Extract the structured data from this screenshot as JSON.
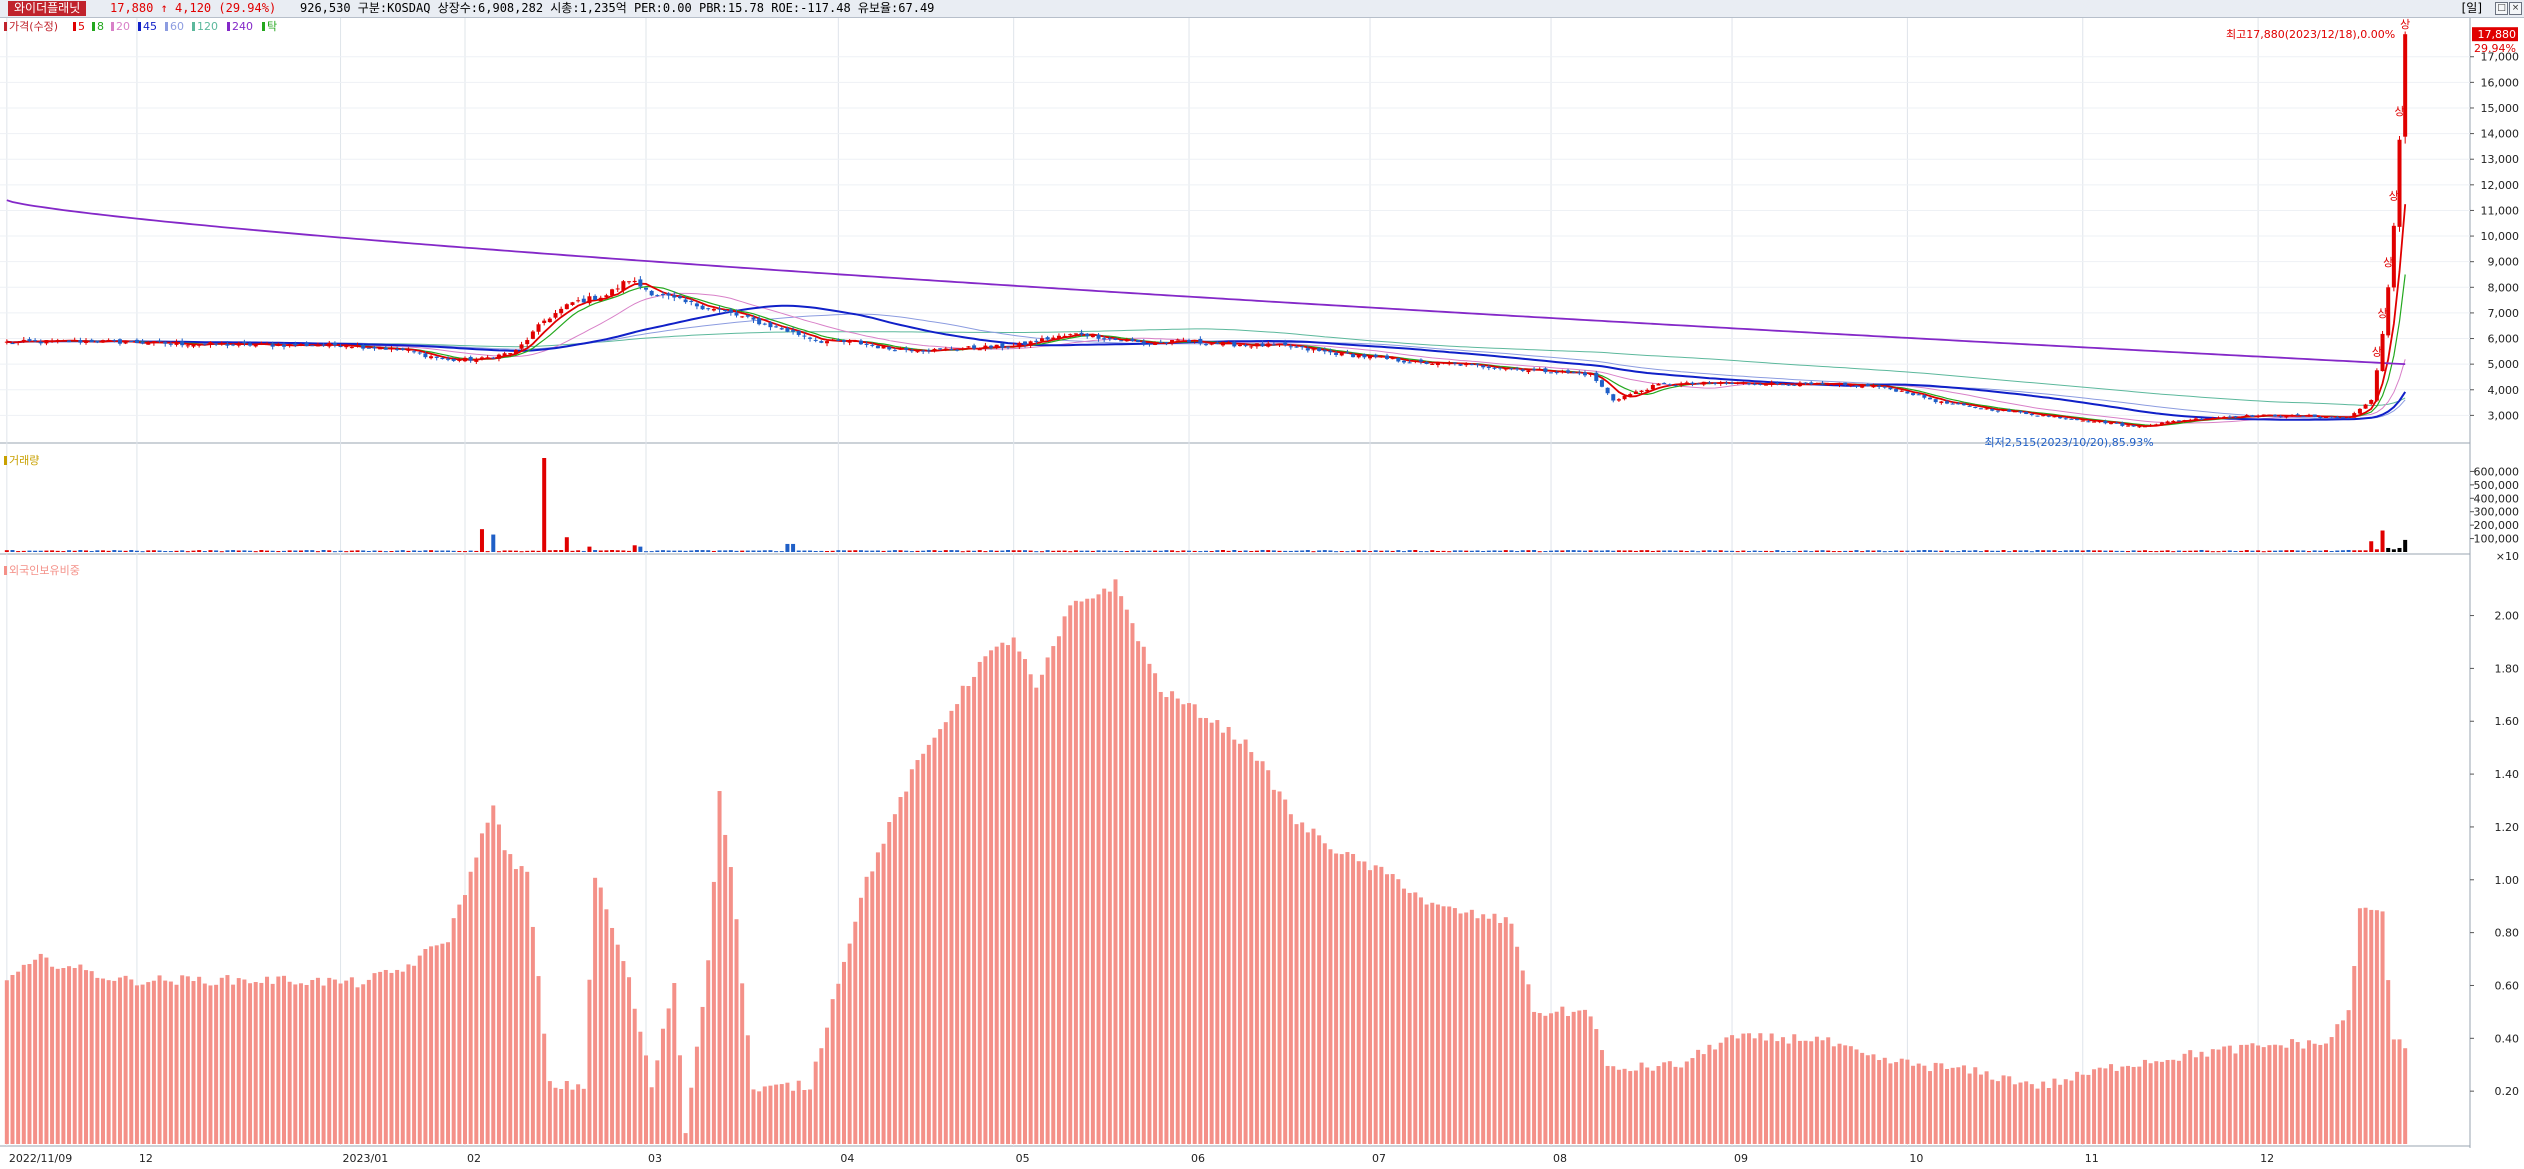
{
  "header": {
    "stock_name": "와이더플래닛",
    "price_text": "17,880  ↑ 4,120 (29.94%)",
    "info_text": "926,530  구분:KOSDAQ 상장수:6,908,282 시총:1,235억 PER:0.00 PBR:15.78 ROE:-117.48 유보율:67.49",
    "period_label": "[일]",
    "window_buttons": [
      "□",
      "×"
    ]
  },
  "colors": {
    "up": "#e00000",
    "down": "#1f5fc7",
    "ma5": "#e00000",
    "ma8": "#24a81e",
    "ma20": "#d880c8",
    "ma45": "#1020c8",
    "ma60": "#8c9ce0",
    "ma120": "#5cb89c",
    "ma240": "#8428c8",
    "foreign_bar": "#f49088"
  },
  "chart_data": [
    {
      "panel": "price",
      "type": "candlestick",
      "legend": [
        "가격(수정)",
        "5",
        "8",
        "20",
        "45",
        "60",
        "120",
        "240",
        "탁"
      ],
      "y_ticks": [
        "3,000",
        "4,000",
        "5,000",
        "6,000",
        "7,000",
        "8,000",
        "9,000",
        "10,000",
        "11,000",
        "12,000",
        "13,000",
        "14,000",
        "15,000",
        "16,000",
        "17,000"
      ],
      "ylim": [
        2000,
        18200
      ],
      "last_price_label": "17,880",
      "last_change_label": "29.94%",
      "high_annotation": "최고17,880(2023/12/18),0.00%",
      "low_annotation": "최저2,515(2023/10/20),85.93%",
      "limit_up_marks": [
        {
          "label": "상",
          "price": 5100
        },
        {
          "label": "상",
          "price": 6600
        },
        {
          "label": "상",
          "price": 8600
        },
        {
          "label": "상",
          "price": 11200
        },
        {
          "label": "상",
          "price": 14500
        },
        {
          "label": "상",
          "price": 17880
        }
      ],
      "anchors": [
        [
          0,
          5850
        ],
        [
          15,
          5900
        ],
        [
          30,
          5800
        ],
        [
          45,
          5750
        ],
        [
          60,
          5750
        ],
        [
          70,
          5550
        ],
        [
          78,
          5150
        ],
        [
          84,
          5200
        ],
        [
          90,
          5500
        ],
        [
          95,
          6700
        ],
        [
          100,
          7400
        ],
        [
          106,
          7700
        ],
        [
          110,
          8300
        ],
        [
          114,
          7800
        ],
        [
          120,
          7400
        ],
        [
          126,
          7100
        ],
        [
          132,
          6700
        ],
        [
          138,
          6300
        ],
        [
          144,
          5900
        ],
        [
          150,
          5850
        ],
        [
          156,
          5600
        ],
        [
          164,
          5550
        ],
        [
          172,
          5650
        ],
        [
          178,
          5700
        ],
        [
          184,
          6000
        ],
        [
          190,
          6200
        ],
        [
          196,
          5950
        ],
        [
          202,
          5800
        ],
        [
          208,
          5900
        ],
        [
          214,
          5800
        ],
        [
          220,
          5750
        ],
        [
          226,
          5700
        ],
        [
          232,
          5500
        ],
        [
          238,
          5350
        ],
        [
          244,
          5200
        ],
        [
          250,
          5050
        ],
        [
          256,
          5000
        ],
        [
          262,
          4900
        ],
        [
          268,
          4800
        ],
        [
          274,
          4700
        ],
        [
          280,
          4600
        ],
        [
          284,
          3600
        ],
        [
          288,
          3900
        ],
        [
          292,
          4200
        ],
        [
          300,
          4250
        ],
        [
          310,
          4250
        ],
        [
          320,
          4200
        ],
        [
          330,
          4150
        ],
        [
          336,
          3900
        ],
        [
          342,
          3500
        ],
        [
          348,
          3300
        ],
        [
          354,
          3150
        ],
        [
          360,
          3000
        ],
        [
          366,
          2850
        ],
        [
          372,
          2700
        ],
        [
          376,
          2550
        ],
        [
          384,
          2800
        ],
        [
          392,
          2950
        ],
        [
          400,
          3000
        ],
        [
          410,
          2950
        ],
        [
          414,
          2900
        ],
        [
          418,
          3600
        ],
        [
          419,
          4760
        ],
        [
          420,
          6180
        ],
        [
          421,
          8000
        ],
        [
          422,
          10400
        ],
        [
          423,
          13760
        ],
        [
          424,
          17880
        ]
      ],
      "ma_smoothing": {
        "ma5": 5,
        "ma8": 8,
        "ma20": 20,
        "ma45": 45,
        "ma60": 60,
        "ma120": 120,
        "ma240": 240
      },
      "ma240_start": 11400,
      "ma240_end": 5000
    },
    {
      "panel": "volume",
      "type": "bar",
      "title": "거래량",
      "y_ticks": [
        "100,000",
        "200,000",
        "300,000",
        "400,000",
        "500,000",
        "600,000"
      ],
      "unit_label": "×10",
      "ylim": [
        0,
        700000
      ],
      "spikes": [
        [
          84,
          170000
        ],
        [
          86,
          130000
        ],
        [
          95,
          700000
        ],
        [
          99,
          110000
        ],
        [
          103,
          40000
        ],
        [
          111,
          50000
        ],
        [
          112,
          40000
        ],
        [
          138,
          60000
        ],
        [
          139,
          60000
        ],
        [
          418,
          80000
        ],
        [
          419,
          20000
        ],
        [
          420,
          160000
        ],
        [
          421,
          30000
        ],
        [
          422,
          20000
        ],
        [
          423,
          30000
        ],
        [
          424,
          90000
        ]
      ]
    },
    {
      "panel": "foreign",
      "type": "bar",
      "title": "외국인보유비중",
      "y_ticks": [
        "0.20",
        "0.40",
        "0.60",
        "0.80",
        "1.00",
        "1.20",
        "1.40",
        "1.60",
        "1.80",
        "2.00"
      ],
      "ylim": [
        0,
        2.18
      ],
      "anchors": [
        [
          0,
          0.62
        ],
        [
          6,
          0.7
        ],
        [
          20,
          0.62
        ],
        [
          50,
          0.62
        ],
        [
          62,
          0.61
        ],
        [
          70,
          0.66
        ],
        [
          78,
          0.78
        ],
        [
          82,
          1.02
        ],
        [
          86,
          1.3
        ],
        [
          88,
          1.1
        ],
        [
          92,
          1.02
        ],
        [
          96,
          0.22
        ],
        [
          102,
          0.22
        ],
        [
          104,
          1.02
        ],
        [
          110,
          0.62
        ],
        [
          114,
          0.22
        ],
        [
          118,
          0.62
        ],
        [
          120,
          0.05
        ],
        [
          124,
          0.7
        ],
        [
          126,
          1.32
        ],
        [
          128,
          1.05
        ],
        [
          132,
          0.2
        ],
        [
          138,
          0.22
        ],
        [
          142,
          0.22
        ],
        [
          148,
          0.7
        ],
        [
          152,
          1.0
        ],
        [
          160,
          1.4
        ],
        [
          172,
          1.82
        ],
        [
          178,
          1.92
        ],
        [
          182,
          1.72
        ],
        [
          188,
          2.03
        ],
        [
          196,
          2.12
        ],
        [
          204,
          1.72
        ],
        [
          212,
          1.62
        ],
        [
          220,
          1.5
        ],
        [
          228,
          1.22
        ],
        [
          236,
          1.1
        ],
        [
          246,
          1.0
        ],
        [
          252,
          0.9
        ],
        [
          266,
          0.84
        ],
        [
          270,
          0.5
        ],
        [
          280,
          0.5
        ],
        [
          283,
          0.28
        ],
        [
          296,
          0.3
        ],
        [
          304,
          0.4
        ],
        [
          320,
          0.4
        ],
        [
          330,
          0.32
        ],
        [
          346,
          0.28
        ],
        [
          360,
          0.22
        ],
        [
          374,
          0.3
        ],
        [
          390,
          0.35
        ],
        [
          404,
          0.38
        ],
        [
          410,
          0.38
        ],
        [
          414,
          0.5
        ],
        [
          416,
          0.88
        ],
        [
          420,
          0.88
        ],
        [
          422,
          0.38
        ],
        [
          424,
          0.38
        ]
      ]
    }
  ],
  "x_axis": {
    "labels": [
      "2022/11/09",
      "12",
      "2023/01",
      "02",
      "03",
      "04",
      "05",
      "06",
      "07",
      "08",
      "09",
      "10",
      "11",
      "12"
    ],
    "label_bars": [
      0,
      23,
      59,
      81,
      113,
      147,
      178,
      209,
      241,
      273,
      305,
      336,
      367,
      398
    ]
  }
}
